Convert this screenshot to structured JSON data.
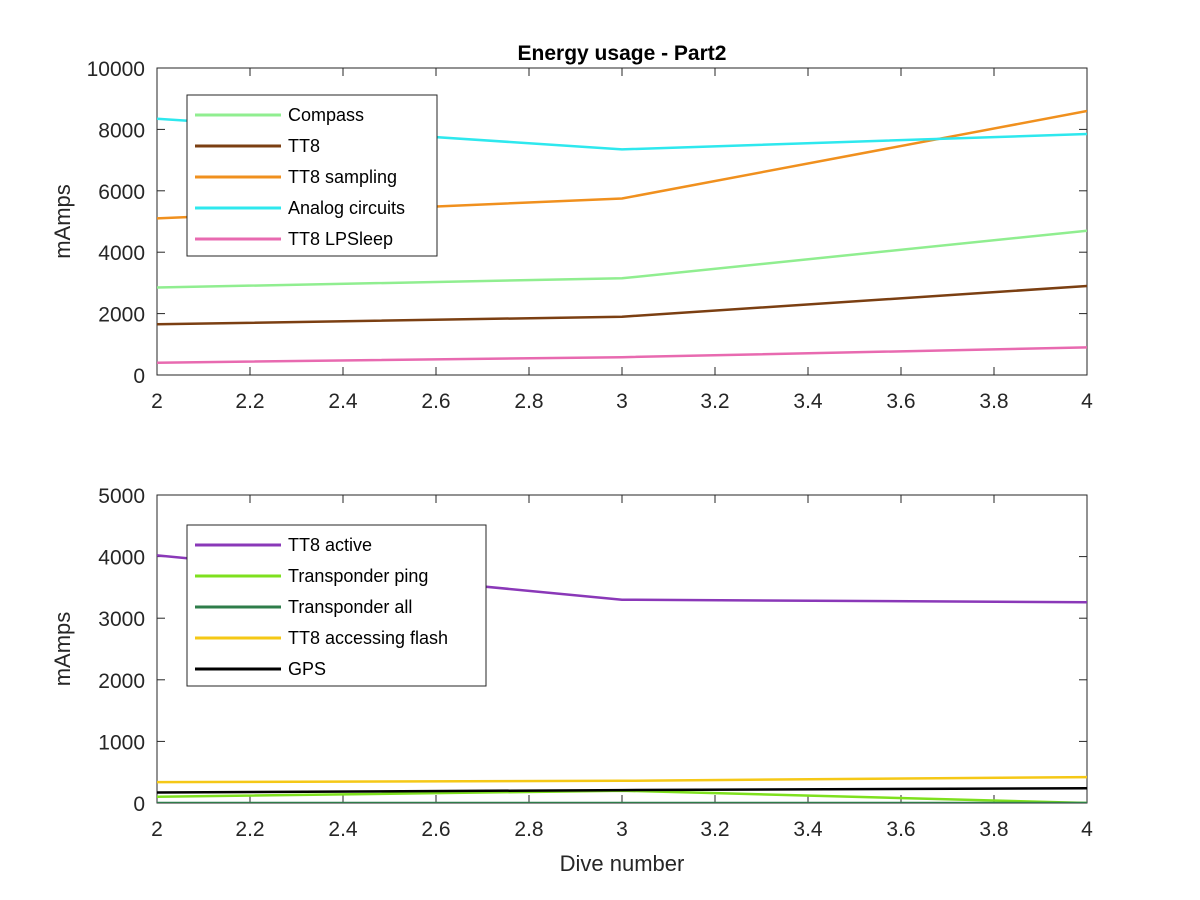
{
  "chart_data": [
    {
      "type": "line",
      "title": "Energy usage - Part2",
      "xlabel": "",
      "ylabel": "mAmps",
      "xlim": [
        2,
        4
      ],
      "ylim": [
        0,
        10000
      ],
      "xticks": [
        "2",
        "2.2",
        "2.4",
        "2.6",
        "2.8",
        "3",
        "3.2",
        "3.4",
        "3.6",
        "3.8",
        "4"
      ],
      "yticks": [
        "0",
        "2000",
        "4000",
        "6000",
        "8000",
        "10000"
      ],
      "legend_position": "top-left",
      "x": [
        2,
        3,
        4
      ],
      "series": [
        {
          "name": "Compass",
          "color": "#90ee90",
          "values": [
            2850,
            3150,
            4700
          ]
        },
        {
          "name": "TT8",
          "color": "#7b3f12",
          "values": [
            1650,
            1900,
            2900
          ]
        },
        {
          "name": "TT8 sampling",
          "color": "#f0901e",
          "values": [
            5100,
            5750,
            8600
          ]
        },
        {
          "name": "Analog circuits",
          "color": "#2ee8ee",
          "values": [
            8350,
            7350,
            7850
          ]
        },
        {
          "name": "TT8 LPSleep",
          "color": "#e86ab0",
          "values": [
            400,
            580,
            900
          ]
        }
      ]
    },
    {
      "type": "line",
      "title": "",
      "xlabel": "Dive number",
      "ylabel": "mAmps",
      "xlim": [
        2,
        4
      ],
      "ylim": [
        0,
        5000
      ],
      "xticks": [
        "2",
        "2.2",
        "2.4",
        "2.6",
        "2.8",
        "3",
        "3.2",
        "3.4",
        "3.6",
        "3.8",
        "4"
      ],
      "yticks": [
        "0",
        "1000",
        "2000",
        "3000",
        "4000",
        "5000"
      ],
      "legend_position": "top-left",
      "x": [
        2,
        3,
        4
      ],
      "series": [
        {
          "name": "TT8 active",
          "color": "#8a38b8",
          "values": [
            4020,
            3300,
            3260
          ]
        },
        {
          "name": "Transponder ping",
          "color": "#7ee01e",
          "values": [
            100,
            200,
            0
          ]
        },
        {
          "name": "Transponder all",
          "color": "#2e7d4a",
          "values": [
            0,
            0,
            0
          ]
        },
        {
          "name": "TT8 accessing flash",
          "color": "#f5c816",
          "values": [
            340,
            360,
            420
          ]
        },
        {
          "name": "GPS",
          "color": "#000000",
          "values": [
            170,
            210,
            240
          ]
        }
      ]
    }
  ]
}
